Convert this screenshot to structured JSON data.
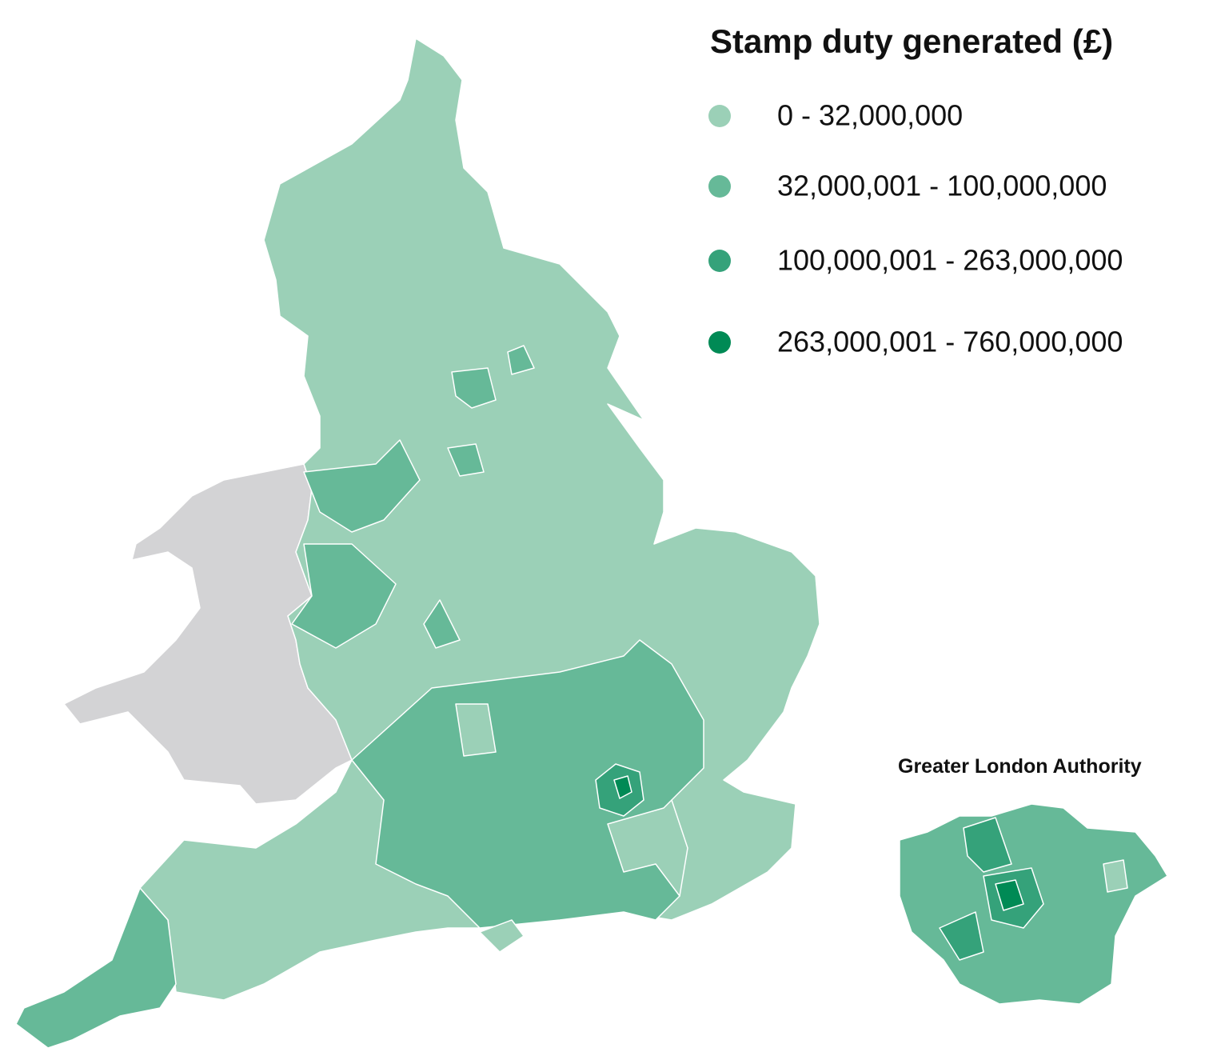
{
  "legend": {
    "title": "Stamp duty generated (£)",
    "items": [
      {
        "label": "0 - 32,000,000",
        "color": "#9bd0b7"
      },
      {
        "label": "32,000,001 - 100,000,000",
        "color": "#66b998"
      },
      {
        "label": "100,000,001 - 263,000,000",
        "color": "#35a27a"
      },
      {
        "label": "263,000,001 - 760,000,000",
        "color": "#008a55"
      }
    ]
  },
  "inset": {
    "title": "Greater London Authority"
  }
}
